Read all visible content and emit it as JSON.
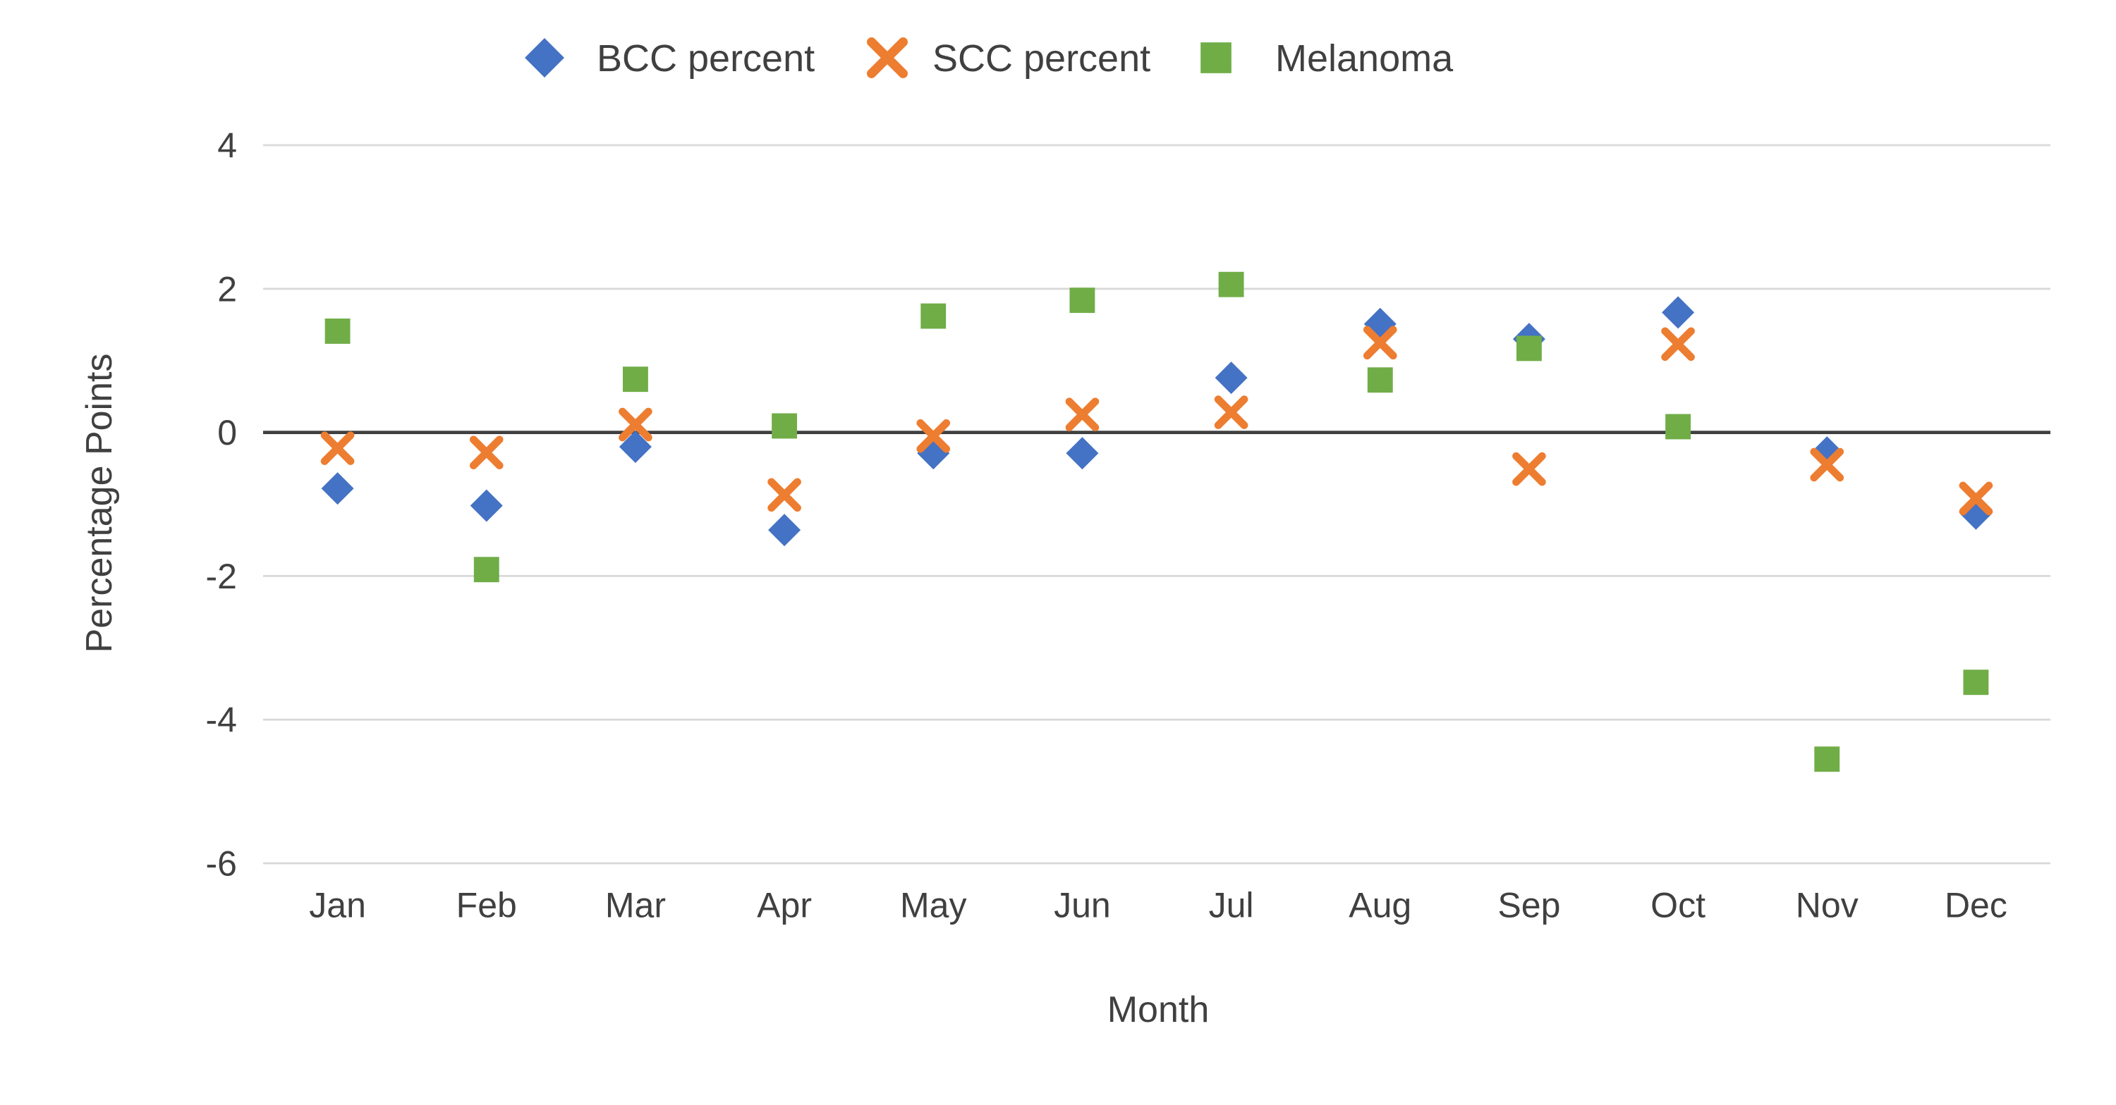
{
  "chart_data": {
    "type": "scatter",
    "title": "",
    "xlabel": "Month",
    "ylabel": "Percentage Points",
    "categories": [
      "Jan",
      "Feb",
      "Mar",
      "Apr",
      "May",
      "Jun",
      "Jul",
      "Aug",
      "Sep",
      "Oct",
      "Nov",
      "Dec"
    ],
    "series": [
      {
        "name": "BCC percent",
        "marker": "diamond",
        "color": "#4472C4",
        "values": [
          -0.78,
          -1.02,
          -0.2,
          -1.36,
          -0.29,
          -0.29,
          0.76,
          1.51,
          1.3,
          1.67,
          -0.28,
          -1.13
        ]
      },
      {
        "name": "SCC percent",
        "marker": "x",
        "color": "#ED7D31",
        "values": [
          -0.22,
          -0.28,
          0.11,
          -0.87,
          -0.05,
          0.25,
          0.28,
          1.25,
          -0.51,
          1.23,
          -0.45,
          -0.92
        ]
      },
      {
        "name": "Melanoma",
        "marker": "square",
        "color": "#70AD47",
        "values": [
          1.41,
          -1.91,
          0.74,
          0.09,
          1.62,
          1.84,
          2.06,
          0.73,
          1.17,
          0.08,
          -4.55,
          -3.48
        ]
      }
    ],
    "y_ticks": [
      4,
      2,
      0,
      -2,
      -4,
      -6
    ],
    "ylim": [
      -6,
      4
    ],
    "grid": "horizontal",
    "legend_position": "top",
    "colors": {
      "gridline": "#d9d9d9",
      "zero_line": "#404040",
      "text": "#404040",
      "background": "#ffffff"
    }
  }
}
